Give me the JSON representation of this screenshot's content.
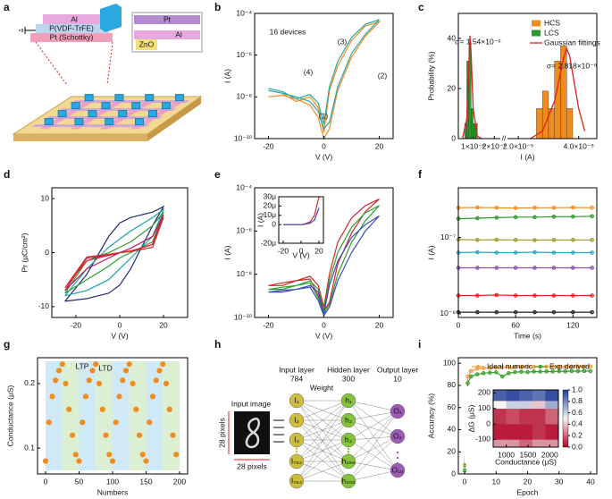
{
  "panel_labels": [
    "a",
    "b",
    "c",
    "d",
    "e",
    "f",
    "g",
    "h",
    "i"
  ],
  "schematic": {
    "stack": [
      "Al",
      "P(VDF-TrFE)",
      "Pt (Schottky)"
    ],
    "top_view": [
      "Pt",
      "Al",
      "ZnO"
    ]
  },
  "network": {
    "input_label": "Input image",
    "pixels_v": "28 pixels",
    "pixels_h": "28 pixels",
    "weight": "Weight",
    "layers": [
      {
        "title": "Input layer",
        "size": 784,
        "nodes": [
          "I₁",
          "I₂",
          "I₃",
          "I₇₈₃",
          "I₇₈₄"
        ],
        "color": "#cdbd3c"
      },
      {
        "title": "Hidden layer",
        "size": 300,
        "nodes": [
          "h₁",
          "h₂",
          "h₃",
          "h₂₉₉",
          "h₃₀₀"
        ],
        "color": "#86c23e"
      },
      {
        "title": "Output layer",
        "size": 10,
        "nodes": [
          "O₁",
          "O₂",
          "O₁₀"
        ],
        "color": "#9b5bb5"
      }
    ]
  },
  "chart_data": [
    {
      "type": "line",
      "ylog": true,
      "xlabel": "V (V)",
      "ylabel": "I (A)",
      "annotations": [
        "16 devices",
        "(1)",
        "(2)",
        "(3)",
        "(4)"
      ],
      "xlim": [
        -25,
        25
      ],
      "xticks": [
        -20,
        0,
        20
      ],
      "ylim": [
        1e-10,
        0.0001
      ],
      "yticks": [
        {
          "value": 1e-10,
          "label": "10⁻¹⁰"
        },
        {
          "value": 1e-08,
          "label": "10⁻⁸"
        },
        {
          "value": 1e-06,
          "label": "10⁻⁶"
        },
        {
          "value": 0.0001,
          "label": "10⁻⁴"
        }
      ],
      "x": [
        -20,
        -15,
        -10,
        -5,
        -2,
        0,
        2,
        5,
        10,
        15,
        20,
        15,
        10,
        5,
        2,
        0,
        -2,
        -5,
        -10,
        -15,
        -20
      ],
      "series": [
        {
          "color": "#f08c1e",
          "values": [
            1e-08,
            1.2e-08,
            8e-09,
            4e-09,
            1e-09,
            1e-10,
            3e-10,
            2e-08,
            8e-07,
            8e-06,
            4e-05,
            2.5e-05,
            5e-06,
            3e-07,
            2e-08,
            2e-10,
            3e-09,
            1e-08,
            6e-09,
            1.5e-08,
            2e-08
          ]
        },
        {
          "color": "#2aa6a6",
          "values": [
            2e-08,
            1.5e-08,
            1e-08,
            6e-09,
            2e-09,
            3e-10,
            6e-10,
            3e-08,
            1.2e-06,
            1e-05,
            5e-05,
            3e-05,
            7e-06,
            5e-07,
            3e-08,
            5e-10,
            5e-09,
            1.3e-08,
            8e-09,
            1.8e-08,
            2.5e-08
          ]
        }
      ]
    },
    {
      "type": "histogram",
      "xlabel": "I (A)",
      "ylabel": "Probability (%)",
      "annotations": [
        "σ= 1.54×10⁻⁹",
        "σ= 2.818×10⁻⁶"
      ],
      "xlim": [
        3e-07,
        2.2e-06
      ],
      "xticks": [
        {
          "value": 1e-06,
          "label": "1×10⁻⁶"
        },
        {
          "value": 2e-06,
          "label": "2×10⁻⁶"
        }
      ],
      "x2lim": [
        1.7e-05,
        4.6e-05
      ],
      "x2ticks": [
        {
          "value": 2e-05,
          "label": "2.0×10⁻⁵"
        },
        {
          "value": 4e-05,
          "label": "4.0×10⁻⁵"
        }
      ],
      "ylim": [
        0,
        50
      ],
      "yticks": [
        0,
        20,
        40
      ],
      "series": [
        {
          "name": "HCS",
          "color": "#f08c1e",
          "axis": "x2",
          "bins": [
            2.6e-05,
            2.8e-05,
            3e-05,
            3.2e-05,
            3.4e-05,
            3.6e-05,
            3.8e-05
          ],
          "values": [
            12,
            19,
            12,
            31,
            37,
            12
          ]
        },
        {
          "name": "LCS",
          "color": "#2b9a2b",
          "bins": [
            6e-07,
            7e-07,
            8e-07,
            9e-07,
            1e-06,
            1.1e-06,
            1.2e-06
          ],
          "values": [
            6,
            31,
            37,
            12,
            6,
            6
          ]
        }
      ],
      "fits": {
        "name": "Gaussian fittings",
        "color": "#e0201c",
        "curves": [
          {
            "x": [
              5e-07,
              7e-07,
              8e-07,
              8.5e-07,
              9e-07,
              1e-06,
              1.2e-06,
              1.4e-06
            ],
            "values": [
              0,
              8,
              30,
              41,
              35,
              12,
              1,
              0
            ]
          },
          {
            "axis": "x2",
            "x": [
              2.4e-05,
              2.8e-05,
              3.2e-05,
              3.5e-05,
              3.6e-05,
              3.7e-05,
              4e-05,
              4.2e-05
            ],
            "values": [
              0,
              3,
              15,
              32,
              36,
              33,
              12,
              3
            ]
          }
        ]
      }
    },
    {
      "type": "line",
      "xlabel": "V (V)",
      "ylabel": "Pr (μC/cm²)",
      "xlim": [
        -31,
        31
      ],
      "xticks": [
        -20,
        0,
        20
      ],
      "ylim": [
        -12,
        12
      ],
      "yticks": [
        -10,
        0,
        10
      ],
      "x": [
        -25,
        -15,
        -5,
        0,
        5,
        15,
        20,
        15,
        5,
        0,
        -5,
        -15,
        -25
      ],
      "series": [
        {
          "color": "#1f2a7a",
          "values": [
            -9,
            -8.5,
            -7.5,
            -6,
            -3,
            5,
            8.5,
            7.5,
            6.5,
            5.5,
            3,
            -4,
            -9
          ]
        },
        {
          "color": "#1aa3a3",
          "values": [
            -8,
            -7,
            -5,
            -3,
            -1,
            3,
            8,
            6.5,
            4,
            2.5,
            1,
            -3,
            -8
          ]
        },
        {
          "color": "#2ca02c",
          "values": [
            -7.5,
            -5,
            -2.5,
            -1,
            0,
            2,
            7.5,
            5,
            2,
            1,
            0,
            -1.5,
            -7.5
          ]
        },
        {
          "color": "#c2185b",
          "values": [
            -7,
            -3,
            -1,
            0,
            0.3,
            1.5,
            7,
            3,
            0.8,
            0,
            -0.5,
            -1,
            -7
          ]
        },
        {
          "color": "#d62728",
          "values": [
            -6.5,
            -1.5,
            -0.5,
            0,
            0.2,
            1,
            6.5,
            1.5,
            0.3,
            0,
            -0.3,
            -0.8,
            -6.5
          ]
        }
      ]
    },
    {
      "type": "line",
      "ylog": true,
      "xlabel": "V (V)",
      "ylabel": "I (A)",
      "xlim": [
        -25,
        25
      ],
      "xticks": [
        -20,
        0,
        20
      ],
      "ylim": [
        1e-10,
        0.0001
      ],
      "yticks": [
        {
          "value": 1e-10,
          "label": "10⁻¹⁰"
        },
        {
          "value": 1e-08,
          "label": "10⁻⁸"
        },
        {
          "value": 1e-06,
          "label": "10⁻⁶"
        },
        {
          "value": 0.0001,
          "label": "10⁻⁴"
        }
      ],
      "x": [
        -20,
        -15,
        -10,
        -5,
        -2,
        0,
        2,
        5,
        10,
        15,
        20,
        15,
        10,
        5,
        2,
        0,
        -2,
        -5,
        -10,
        -15,
        -20
      ],
      "series": [
        {
          "color": "#d62728",
          "values": [
            3e-09,
            4e-09,
            5e-09,
            6e-09,
            1e-09,
            2e-10,
            5e-10,
            3e-08,
            8e-07,
            8e-06,
            3e-05,
            1.5e-05,
            4e-06,
            3e-07,
            1e-08,
            3e-10,
            3e-09,
            8e-09,
            5e-09,
            3e-09,
            3e-09
          ]
        },
        {
          "color": "#2ca02c",
          "values": [
            2e-09,
            2.5e-09,
            3e-09,
            4e-09,
            8e-10,
            1.5e-10,
            4e-10,
            1e-08,
            3e-07,
            3e-06,
            1.5e-05,
            7e-06,
            1.5e-06,
            1e-07,
            5e-09,
            2e-10,
            2e-09,
            5e-09,
            3e-09,
            2e-09,
            2e-09
          ]
        },
        {
          "color": "#3b4cc0",
          "values": [
            1.5e-09,
            1.8e-09,
            2e-09,
            2.5e-09,
            6e-10,
            1.2e-10,
            3e-10,
            5e-09,
            1e-07,
            1e-06,
            5e-06,
            2e-06,
            5e-07,
            4e-08,
            3e-09,
            1.5e-10,
            1.5e-09,
            3e-09,
            2e-09,
            1.5e-09,
            1.5e-09
          ]
        }
      ]
    },
    {
      "type": "line",
      "xlabel": "V (V)",
      "ylabel": "I (A)",
      "xlim": [
        -25,
        25
      ],
      "xticks": [
        -20,
        0,
        20
      ],
      "ylim": [
        -2e-05,
        3e-05
      ],
      "yticks": [
        {
          "value": -2e-05,
          "label": "-20μ"
        },
        0,
        {
          "value": 1e-05,
          "label": "10μ"
        },
        {
          "value": 2e-05,
          "label": "20μ"
        },
        {
          "value": 3e-05,
          "label": "30μ"
        }
      ],
      "x": [
        -20,
        -10,
        0,
        5,
        10,
        15,
        20
      ],
      "series": [
        {
          "color": "#d62728",
          "values": [
            0,
            0,
            0,
            1e-06,
            3e-06,
            1e-05,
            3e-05
          ]
        },
        {
          "color": "#3b4cc0",
          "values": [
            0,
            0,
            0,
            5e-07,
            1.5e-06,
            5e-06,
            1.8e-05
          ]
        }
      ]
    },
    {
      "type": "line",
      "ylog": true,
      "markers": true,
      "xlabel": "Time (s)",
      "ylabel": "I (A)",
      "xlim": [
        0,
        145
      ],
      "xticks": [
        0,
        60,
        120
      ],
      "ylim": [
        8e-10,
        2e-06
      ],
      "yticks": [
        {
          "value": 1e-09,
          "label": "10⁻⁹"
        },
        {
          "value": 1e-07,
          "label": "10⁻⁷"
        }
      ],
      "x": [
        0,
        20,
        40,
        60,
        80,
        100,
        120,
        140
      ],
      "series": [
        {
          "color": "#f08c1e",
          "values": [
            6e-07,
            6.1e-07,
            6e-07,
            5.9e-07,
            6e-07,
            6e-07,
            6.1e-07,
            6e-07
          ]
        },
        {
          "color": "#2b9a2b",
          "values": [
            3.1e-07,
            3.2e-07,
            3.3e-07,
            3.4e-07,
            3.4e-07,
            3.5e-07,
            3.5e-07,
            3.6e-07
          ]
        },
        {
          "color": "#9a9a2a",
          "values": [
            8.8e-08,
            8.6e-08,
            8.7e-08,
            8.6e-08,
            8.5e-08,
            8.6e-08,
            8.6e-08,
            8.6e-08
          ]
        },
        {
          "color": "#2aa6c0",
          "values": [
            4e-08,
            4.1e-08,
            4e-08,
            4e-08,
            4.1e-08,
            4e-08,
            4e-08,
            4e-08
          ]
        },
        {
          "color": "#8a4fb0",
          "values": [
            1.6e-08,
            1.6e-08,
            1.6e-08,
            1.6e-08,
            1.6e-08,
            1.6e-08,
            1.6e-08,
            1.6e-08
          ]
        },
        {
          "color": "#e0201c",
          "values": [
            3e-09,
            3e-09,
            3.1e-09,
            3e-09,
            3e-09,
            3e-09,
            3e-09,
            3e-09
          ]
        },
        {
          "color": "#222222",
          "values": [
            1.1e-09,
            1.1e-09,
            1.1e-09,
            1.1e-09,
            1.1e-09,
            1.1e-09,
            1.1e-09,
            1.1e-09
          ]
        }
      ]
    },
    {
      "type": "scatter",
      "markers": true,
      "xlabel": "Numbers",
      "ylabel": "Conductance (μS)",
      "annotations": [
        "LTP",
        "LTD"
      ],
      "xlim": [
        -12,
        212
      ],
      "xticks": [
        0,
        50,
        100,
        150,
        200
      ],
      "ylim": [
        0.06,
        0.24
      ],
      "yticks": [
        0.1,
        0.2
      ],
      "regions": [
        {
          "start": 0,
          "end": 25,
          "color": "#cfe9f7"
        },
        {
          "start": 25,
          "end": 50,
          "color": "#dcefd2"
        },
        {
          "start": 50,
          "end": 75,
          "color": "#cfe9f7"
        },
        {
          "start": 75,
          "end": 100,
          "color": "#dcefd2"
        },
        {
          "start": 100,
          "end": 125,
          "color": "#cfe9f7"
        },
        {
          "start": 125,
          "end": 150,
          "color": "#dcefd2"
        },
        {
          "start": 150,
          "end": 175,
          "color": "#cfe9f7"
        },
        {
          "start": 175,
          "end": 200,
          "color": "#dcefd2"
        }
      ],
      "x": [
        0,
        5,
        10,
        15,
        20,
        25,
        30,
        35,
        40,
        45,
        50,
        55,
        60,
        65,
        70,
        75,
        80,
        85,
        90,
        95,
        100,
        105,
        110,
        115,
        120,
        125,
        130,
        135,
        140,
        145,
        150,
        155,
        160,
        165,
        170,
        175,
        180,
        185,
        190,
        195
      ],
      "series": [
        {
          "color": "#f08c1e",
          "values": [
            0.08,
            0.14,
            0.18,
            0.205,
            0.22,
            0.23,
            0.2,
            0.16,
            0.12,
            0.09,
            0.08,
            0.14,
            0.18,
            0.205,
            0.22,
            0.23,
            0.2,
            0.16,
            0.12,
            0.09,
            0.08,
            0.14,
            0.18,
            0.205,
            0.22,
            0.23,
            0.2,
            0.16,
            0.12,
            0.09,
            0.08,
            0.14,
            0.18,
            0.205,
            0.22,
            0.23,
            0.2,
            0.16,
            0.12,
            0.09
          ]
        }
      ]
    },
    {
      "type": "line",
      "markers": true,
      "xlabel": "Epoch",
      "ylabel": "Accuracy (%)",
      "xlim": [
        -2,
        42
      ],
      "xticks": [
        0,
        10,
        20,
        30,
        40
      ],
      "ylim": [
        0,
        105
      ],
      "yticks": [
        0,
        20,
        40,
        60,
        80,
        100
      ],
      "x": [
        0,
        1,
        2,
        4,
        6,
        8,
        10,
        12,
        14,
        16,
        18,
        20,
        22,
        24,
        26,
        28,
        30,
        32,
        34,
        36,
        38,
        40
      ],
      "series": [
        {
          "name": "Ideal numeric",
          "color": "#f5a03a",
          "values": [
            8,
            88,
            93,
            95,
            95.5,
            96,
            96.2,
            96.4,
            96.5,
            96.6,
            96.7,
            96.8,
            96.8,
            96.9,
            96.9,
            97,
            97,
            97,
            97,
            97.1,
            97.1,
            97.1
          ]
        },
        {
          "name": "Exp.derived",
          "color": "#3aa02c",
          "values": [
            3,
            82,
            88,
            90,
            91,
            91.5,
            91.8,
            88,
            91,
            92,
            92.3,
            92,
            92.5,
            92.4,
            92.6,
            92.5,
            92.8,
            92.6,
            92.9,
            92.8,
            93,
            92.9
          ]
        }
      ]
    },
    {
      "type": "heatmap",
      "xlabel": "Conductance (μS)",
      "ylabel": "ΔG (μS)",
      "xlim": [
        700,
        2200
      ],
      "xticks": [
        1000,
        1500,
        2000
      ],
      "ylim": [
        -150,
        220
      ],
      "yticks": [
        -100,
        0,
        100,
        200
      ],
      "x_edges": [
        700,
        1000,
        1300,
        1600,
        1900,
        2200
      ],
      "y_edges": [
        -150,
        -100,
        0,
        100,
        150,
        220
      ],
      "z": [
        [
          0.3,
          0.3,
          0.2,
          0.3,
          0.3
        ],
        [
          0.05,
          0.05,
          0.05,
          0.1,
          0.05
        ],
        [
          0.1,
          0.15,
          0.1,
          0.1,
          0.2
        ],
        [
          0.5,
          0.6,
          0.6,
          0.4,
          0.7
        ],
        [
          0.9,
          0.95,
          0.9,
          0.85,
          0.95
        ]
      ],
      "colorscale": [
        "#b40426",
        "#f5f5f5",
        "#1f3d99"
      ],
      "zlim": [
        0,
        1
      ],
      "zticks": [
        {
          "value": 0,
          "label": "0.0"
        },
        0.2,
        0.4,
        0.6,
        0.8,
        {
          "value": 1,
          "label": "1.0"
        }
      ]
    }
  ]
}
